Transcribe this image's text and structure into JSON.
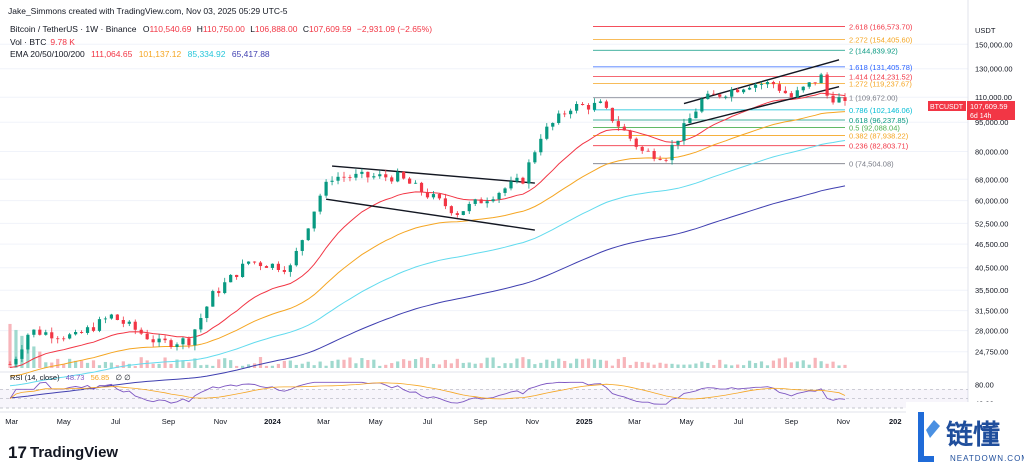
{
  "header": {
    "author": "Jake_Simmons created with TradingView.com, Nov 03, 2025 05:29 UTC-5",
    "symbol": "Bitcoin / TetherUS · 1W · Binance",
    "open_label": "O",
    "open": "110,540.69",
    "high_label": "H",
    "high": "110,750.00",
    "low_label": "L",
    "low": "106,888.00",
    "close_label": "C",
    "close": "107,609.59",
    "change": "−2,931.09 (−2.65%)",
    "vol_label": "Vol · BTC",
    "vol": "9.78 K",
    "ema_label": "EMA 20/50/100/200",
    "ema20": "111,064.65",
    "ema50": "101,137.12",
    "ema100": "85,334.92",
    "ema200": "65,417.88",
    "rsi_label": "RSI (14, close)",
    "rsi_value": "48.73",
    "rsi_ma": "56.85",
    "rsi_extra": "∅ ∅"
  },
  "colors": {
    "up": "#089981",
    "down": "#f23645",
    "ema20": "#f23645",
    "ema50": "#f5a623",
    "ema100": "#62dbee",
    "ema200": "#3f3fb0",
    "rsi": "#7e57c2",
    "brand": "#1f6bd8"
  },
  "axis": {
    "currency": "USDT",
    "price_label_symbol": "BTCUSDT",
    "price_label_value": "107,609.59",
    "price_label_time": "6d 14h",
    "price_ticks": [
      "150,000.00",
      "130,000.00",
      "110,000.00",
      "95,000.00",
      "80,000.00",
      "68,000.00",
      "60,000.00",
      "52,500.00",
      "46,500.00",
      "40,500.00",
      "35,500.00",
      "31,500.00",
      "28,000.00",
      "24,750.00"
    ],
    "rsi_ticks": [
      "80.00",
      "40.00"
    ],
    "time_ticks": [
      "Mar",
      "May",
      "Jul",
      "Sep",
      "Nov",
      "2024",
      "Mar",
      "May",
      "Jul",
      "Sep",
      "Nov",
      "2025",
      "Mar",
      "May",
      "Jul",
      "Sep",
      "Nov",
      "202"
    ]
  },
  "fib_levels": [
    {
      "label": "2.618 (166,573.70)",
      "color": "#f23645"
    },
    {
      "label": "2.272 (154,405.60)",
      "color": "#f5a623"
    },
    {
      "label": "2 (144,839.92)",
      "color": "#089981"
    },
    {
      "label": "1.618 (131,405.78)",
      "color": "#2962ff"
    },
    {
      "label": "1.414 (124,231.52)",
      "color": "#f23645"
    },
    {
      "label": "1.272 (119,237.67)",
      "color": "#f5a623"
    },
    {
      "label": "1 (109,672.00)",
      "color": "#787b86"
    },
    {
      "label": "0.786 (102,146.06)",
      "color": "#00bcd4"
    },
    {
      "label": "0.618 (96,237.85)",
      "color": "#089981"
    },
    {
      "label": "0.5 (92,088.04)",
      "color": "#4caf50"
    },
    {
      "label": "0.382 (87,938.22)",
      "color": "#f5a623"
    },
    {
      "label": "0.236 (82,803.71)",
      "color": "#f23645"
    },
    {
      "label": "0 (74,504.08)",
      "color": "#787b86"
    }
  ],
  "footer": {
    "brand": "TradingView"
  },
  "watermark": {
    "name": "链懂",
    "sub": "NEATDOWN.COM"
  },
  "chart_data": {
    "type": "candlestick",
    "title": "Bitcoin / TetherUS · 1W · Binance",
    "interval": "1W",
    "y_scale": "log",
    "ylim": [
      22500,
      175000
    ],
    "x_range": [
      "2023-02-27",
      "2025-11-03"
    ],
    "last_close": 107609.59,
    "fib_extension": [
      {
        "level": 2.618,
        "price": 166573.7
      },
      {
        "level": 2.272,
        "price": 154405.6
      },
      {
        "level": 2,
        "price": 144839.92
      },
      {
        "level": 1.618,
        "price": 131405.78
      },
      {
        "level": 1.414,
        "price": 124231.52
      },
      {
        "level": 1.272,
        "price": 119237.67
      },
      {
        "level": 1,
        "price": 109672.0
      },
      {
        "level": 0.786,
        "price": 102146.06
      },
      {
        "level": 0.618,
        "price": 96237.85
      },
      {
        "level": 0.5,
        "price": 92088.04
      },
      {
        "level": 0.382,
        "price": 87938.22
      },
      {
        "level": 0.236,
        "price": 82803.71
      },
      {
        "level": 0,
        "price": 74504.08
      }
    ],
    "ema_last": {
      "ema20": 111064.65,
      "ema50": 101137.12,
      "ema100": 85334.92,
      "ema200": 65417.88
    },
    "rsi_last": 48.73,
    "rsi_ma_last": 56.85,
    "closes_anchor": [
      {
        "date": "2023-03-01",
        "close": 23000
      },
      {
        "date": "2023-03-22",
        "close": 28000
      },
      {
        "date": "2023-05-15",
        "close": 27000
      },
      {
        "date": "2023-06-26",
        "close": 30500
      },
      {
        "date": "2023-08-21",
        "close": 26000
      },
      {
        "date": "2023-09-25",
        "close": 26500
      },
      {
        "date": "2023-10-23",
        "close": 34500
      },
      {
        "date": "2023-12-04",
        "close": 42000
      },
      {
        "date": "2024-01-22",
        "close": 40500
      },
      {
        "date": "2024-02-26",
        "close": 62000
      },
      {
        "date": "2024-03-11",
        "close": 69000
      },
      {
        "date": "2024-05-27",
        "close": 69000
      },
      {
        "date": "2024-08-05",
        "close": 56000
      },
      {
        "date": "2024-10-21",
        "close": 68000
      },
      {
        "date": "2024-11-11",
        "close": 88000
      },
      {
        "date": "2024-12-16",
        "close": 104000
      },
      {
        "date": "2025-01-20",
        "close": 105000
      },
      {
        "date": "2025-03-10",
        "close": 80000
      },
      {
        "date": "2025-04-07",
        "close": 78000
      },
      {
        "date": "2025-05-19",
        "close": 108000
      },
      {
        "date": "2025-07-14",
        "close": 119000
      },
      {
        "date": "2025-08-11",
        "close": 119000
      },
      {
        "date": "2025-09-01",
        "close": 110000
      },
      {
        "date": "2025-10-06",
        "close": 124000
      },
      {
        "date": "2025-10-13",
        "close": 111000
      },
      {
        "date": "2025-11-03",
        "close": 107609.59
      }
    ]
  }
}
